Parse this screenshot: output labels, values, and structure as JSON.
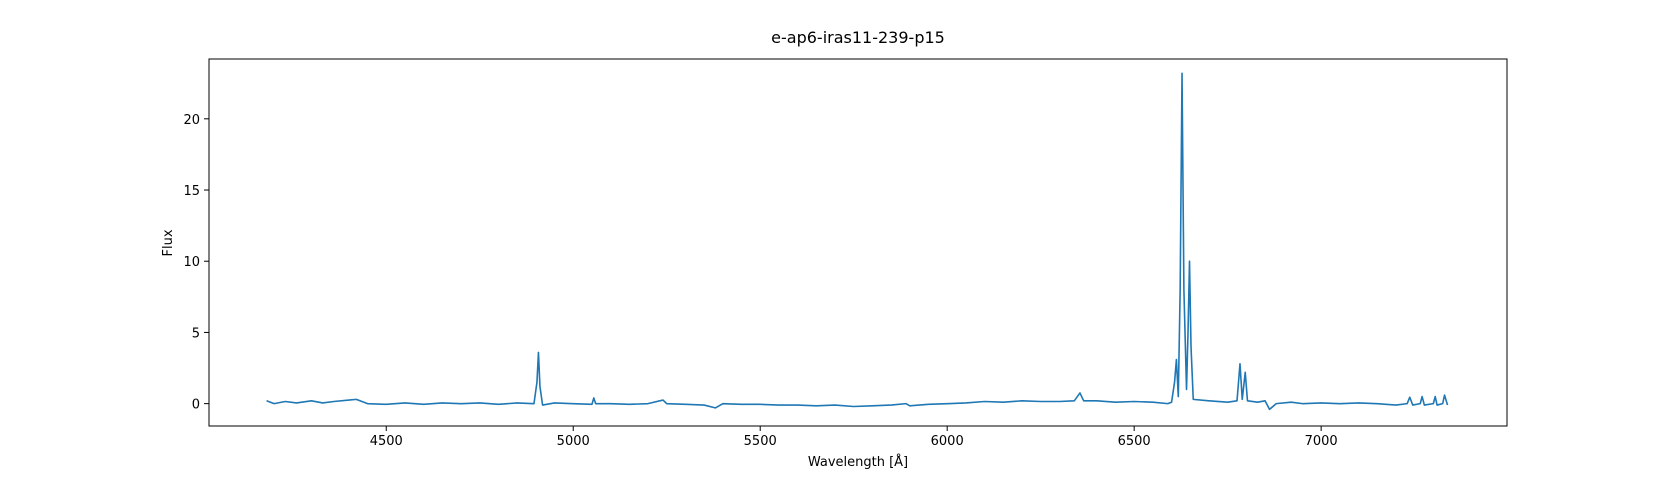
{
  "chart_data": {
    "type": "line",
    "title": "e-ap6-iras11-239-p15",
    "x_label": "Wavelength [Å]",
    "y_label": "Flux",
    "x": [
      4180,
      4200,
      4230,
      4260,
      4300,
      4330,
      4360,
      4400,
      4420,
      4450,
      4500,
      4550,
      4600,
      4650,
      4700,
      4750,
      4800,
      4850,
      4895,
      4903,
      4907,
      4911,
      4918,
      4950,
      5000,
      5050,
      5055,
      5060,
      5100,
      5150,
      5200,
      5240,
      5250,
      5300,
      5350,
      5380,
      5400,
      5450,
      5500,
      5550,
      5600,
      5650,
      5700,
      5750,
      5800,
      5850,
      5890,
      5900,
      5950,
      6000,
      6050,
      6100,
      6150,
      6200,
      6250,
      6300,
      6340,
      6355,
      6365,
      6400,
      6450,
      6500,
      6550,
      6590,
      6600,
      6608,
      6613,
      6618,
      6623,
      6628,
      6633,
      6640,
      6644,
      6648,
      6652,
      6658,
      6700,
      6750,
      6775,
      6783,
      6789,
      6797,
      6803,
      6830,
      6850,
      6862,
      6880,
      6920,
      6950,
      7000,
      7050,
      7100,
      7150,
      7200,
      7230,
      7237,
      7245,
      7265,
      7270,
      7276,
      7300,
      7305,
      7310,
      7325,
      7330,
      7338
    ],
    "series": [
      {
        "color": "#1f77b4",
        "values": [
          0.2,
          0.0,
          0.15,
          0.05,
          0.2,
          0.05,
          0.15,
          0.25,
          0.3,
          0.0,
          -0.05,
          0.05,
          -0.05,
          0.05,
          0.0,
          0.05,
          -0.05,
          0.05,
          0.0,
          1.5,
          3.6,
          1.2,
          -0.1,
          0.05,
          0.0,
          -0.05,
          0.4,
          0.0,
          0.0,
          -0.05,
          0.0,
          0.25,
          0.0,
          -0.05,
          -0.1,
          -0.3,
          0.0,
          -0.05,
          -0.05,
          -0.1,
          -0.1,
          -0.15,
          -0.1,
          -0.2,
          -0.15,
          -0.1,
          0.0,
          -0.15,
          -0.05,
          0.0,
          0.05,
          0.15,
          0.1,
          0.2,
          0.15,
          0.15,
          0.2,
          0.75,
          0.2,
          0.2,
          0.1,
          0.15,
          0.1,
          0.0,
          0.1,
          1.5,
          3.1,
          0.5,
          8,
          23.2,
          8,
          1.0,
          5,
          10.0,
          4,
          0.3,
          0.2,
          0.1,
          0.2,
          2.8,
          0.3,
          2.2,
          0.2,
          0.1,
          0.2,
          -0.4,
          0.0,
          0.1,
          0.0,
          0.05,
          0.0,
          0.05,
          0.0,
          -0.1,
          0.0,
          0.45,
          -0.1,
          0.0,
          0.5,
          -0.1,
          0.0,
          0.5,
          -0.1,
          0.0,
          0.6,
          -0.1
        ]
      }
    ],
    "xlim": [
      4026,
      7497
    ],
    "ylim": [
      -1.57,
      24.2
    ],
    "xticks": [
      4500,
      5000,
      5500,
      6000,
      6500,
      7000
    ],
    "yticks": [
      0,
      5,
      10,
      15,
      20
    ]
  }
}
